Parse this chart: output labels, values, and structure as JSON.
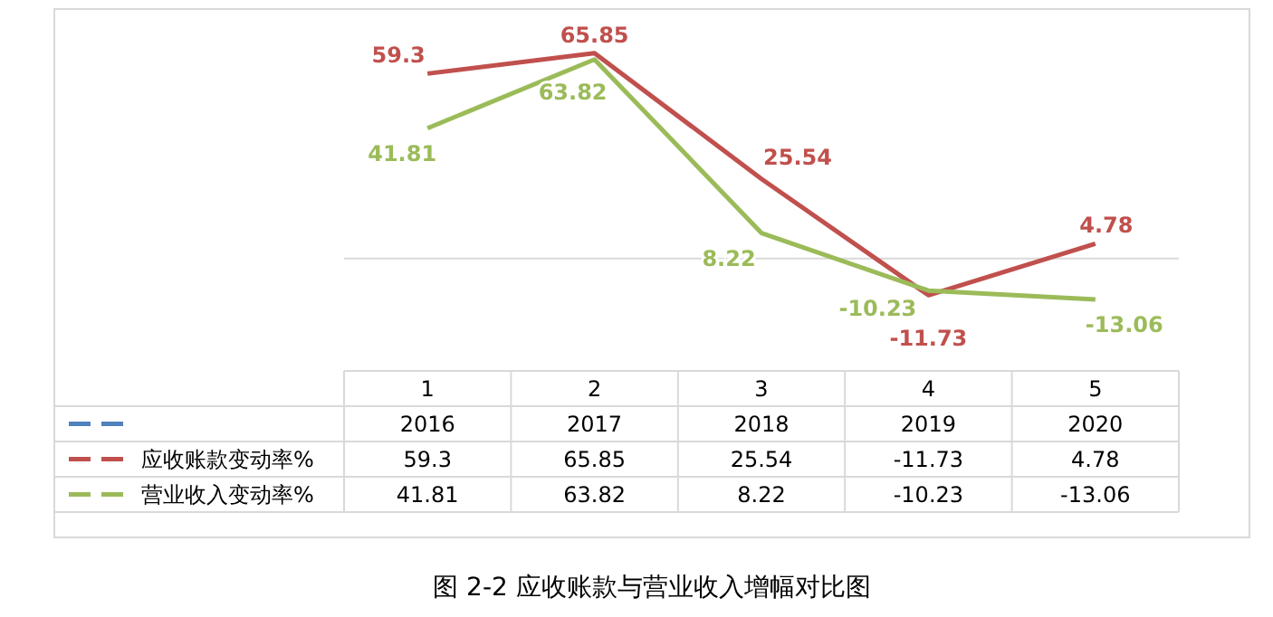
{
  "chart_data": {
    "type": "line",
    "title": "图 2-2 应收账款与营业收入增幅对比图",
    "categories": [
      "1",
      "2",
      "3",
      "4",
      "5"
    ],
    "series": [
      {
        "name": "应收账款变动率%",
        "color": "#c0504d",
        "values": [
          59.3,
          65.85,
          25.54,
          -11.73,
          4.78
        ],
        "value_labels": [
          "59.3",
          "65.85",
          "25.54",
          "-11.73",
          "4.78"
        ]
      },
      {
        "name": "营业收入变动率%",
        "color": "#9bbb59",
        "values": [
          41.81,
          63.82,
          8.22,
          -10.23,
          -13.06
        ],
        "value_labels": [
          "41.81",
          "63.82",
          "8.22",
          "-10.23",
          "-13.06"
        ]
      }
    ],
    "annotations": [
      "2016",
      "2017",
      "2018",
      "2019",
      "2020",
      "59.3",
      "65.85",
      "25.54",
      "-11.73",
      "4.78",
      "41.81",
      "63.82",
      "8.22",
      "-10.23",
      "-13.06"
    ],
    "ylim": [
      -36,
      80
    ],
    "legend": "bottom",
    "marker": "none",
    "line_style": "solid"
  }
}
